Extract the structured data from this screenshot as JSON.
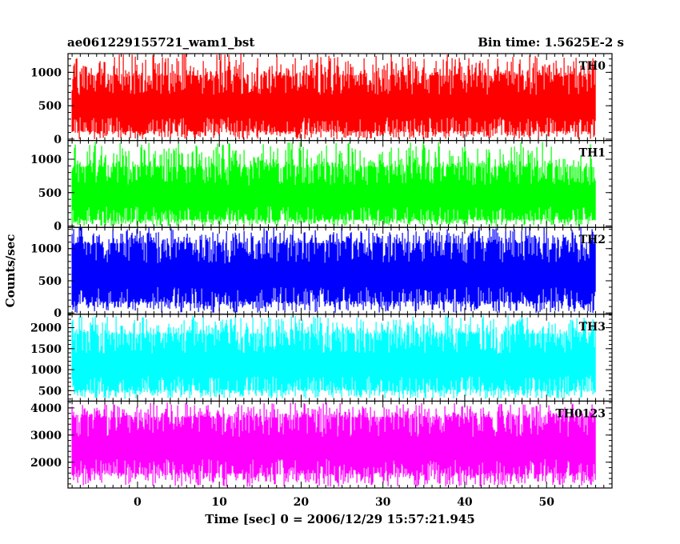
{
  "chart_data": {
    "type": "line",
    "title_left": "ae061229155721_wam1_bst",
    "title_right": "Bin time: 1.5625E-2 s",
    "xlabel": "Time [sec] 0 = 2006/12/29 15:57:21.945",
    "ylabel": "Counts/sec",
    "x_range": [
      -8.5,
      58
    ],
    "x_ticks": [
      0,
      10,
      20,
      30,
      40,
      50
    ],
    "data_x_range": [
      -8,
      56
    ],
    "panels": [
      {
        "name": "TH0",
        "color": "#ff0000",
        "ylim": [
          -20,
          1280
        ],
        "y_ticks": [
          0,
          500,
          1000
        ],
        "band_low": 120,
        "band_high": 950,
        "dip_min": 0,
        "spike_max": 1280
      },
      {
        "name": "TH1",
        "color": "#00ff00",
        "ylim": [
          -20,
          1280
        ],
        "y_ticks": [
          0,
          500,
          1000
        ],
        "band_low": 100,
        "band_high": 880,
        "dip_min": 0,
        "spike_max": 1260
      },
      {
        "name": "TH2",
        "color": "#0000ff",
        "ylim": [
          -20,
          1330
        ],
        "y_ticks": [
          0,
          500,
          1000
        ],
        "band_low": 180,
        "band_high": 1080,
        "dip_min": 0,
        "spike_max": 1330
      },
      {
        "name": "TH3",
        "color": "#00ffff",
        "ylim": [
          250,
          2320
        ],
        "y_ticks": [
          500,
          1000,
          1500,
          2000
        ],
        "band_low": 520,
        "band_high": 1850,
        "dip_min": 300,
        "spike_max": 2300
      },
      {
        "name": "TH0123",
        "color": "#ff00ff",
        "ylim": [
          1050,
          4250
        ],
        "y_ticks": [
          2000,
          3000,
          4000
        ],
        "band_low": 1600,
        "band_high": 3650,
        "dip_min": 1100,
        "spike_max": 4200
      }
    ]
  }
}
